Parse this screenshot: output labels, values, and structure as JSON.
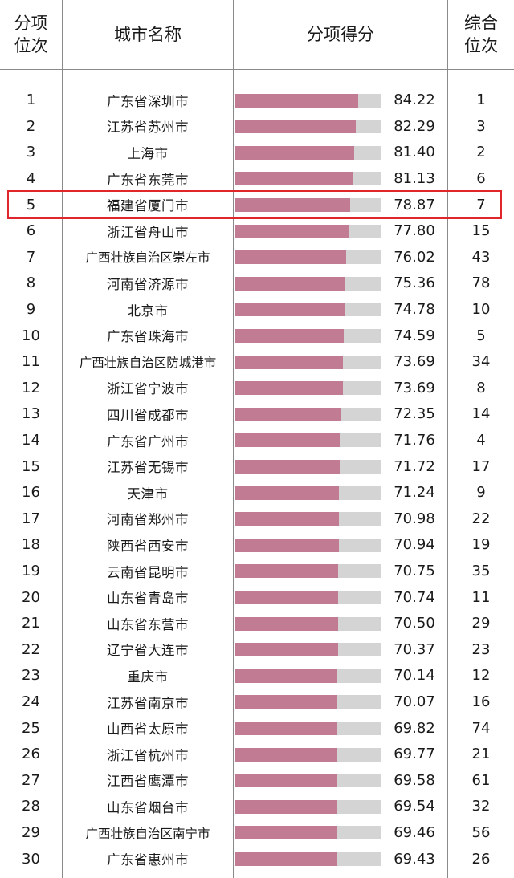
{
  "header": {
    "rank_line1": "分项",
    "rank_line2": "位次",
    "city": "城市名称",
    "score": "分项得分",
    "overall_line1": "综合",
    "overall_line2": "位次"
  },
  "colors": {
    "bar_fill": "#c17b93",
    "bar_track": "#d4d4d4",
    "highlight": "#e0262a"
  },
  "highlight_rank": 5,
  "chart_data": {
    "type": "bar",
    "orientation": "horizontal",
    "xlim": [
      0,
      100
    ],
    "rows": [
      {
        "rank": "1",
        "city": "广东省深圳市",
        "score": "84.22",
        "overall": "1"
      },
      {
        "rank": "2",
        "city": "江苏省苏州市",
        "score": "82.29",
        "overall": "3"
      },
      {
        "rank": "3",
        "city": "上海市",
        "score": "81.40",
        "overall": "2"
      },
      {
        "rank": "4",
        "city": "广东省东莞市",
        "score": "81.13",
        "overall": "6"
      },
      {
        "rank": "5",
        "city": "福建省厦门市",
        "score": "78.87",
        "overall": "7"
      },
      {
        "rank": "6",
        "city": "浙江省舟山市",
        "score": "77.80",
        "overall": "15"
      },
      {
        "rank": "7",
        "city": "广西壮族自治区崇左市",
        "score": "76.02",
        "overall": "43"
      },
      {
        "rank": "8",
        "city": "河南省济源市",
        "score": "75.36",
        "overall": "78"
      },
      {
        "rank": "9",
        "city": "北京市",
        "score": "74.78",
        "overall": "10"
      },
      {
        "rank": "10",
        "city": "广东省珠海市",
        "score": "74.59",
        "overall": "5"
      },
      {
        "rank": "11",
        "city": "广西壮族自治区防城港市",
        "score": "73.69",
        "overall": "34"
      },
      {
        "rank": "12",
        "city": "浙江省宁波市",
        "score": "73.69",
        "overall": "8"
      },
      {
        "rank": "13",
        "city": "四川省成都市",
        "score": "72.35",
        "overall": "14"
      },
      {
        "rank": "14",
        "city": "广东省广州市",
        "score": "71.76",
        "overall": "4"
      },
      {
        "rank": "15",
        "city": "江苏省无锡市",
        "score": "71.72",
        "overall": "17"
      },
      {
        "rank": "16",
        "city": "天津市",
        "score": "71.24",
        "overall": "9"
      },
      {
        "rank": "17",
        "city": "河南省郑州市",
        "score": "70.98",
        "overall": "22"
      },
      {
        "rank": "18",
        "city": "陕西省西安市",
        "score": "70.94",
        "overall": "19"
      },
      {
        "rank": "19",
        "city": "云南省昆明市",
        "score": "70.75",
        "overall": "35"
      },
      {
        "rank": "20",
        "city": "山东省青岛市",
        "score": "70.74",
        "overall": "11"
      },
      {
        "rank": "21",
        "city": "山东省东营市",
        "score": "70.50",
        "overall": "29"
      },
      {
        "rank": "22",
        "city": "辽宁省大连市",
        "score": "70.37",
        "overall": "23"
      },
      {
        "rank": "23",
        "city": "重庆市",
        "score": "70.14",
        "overall": "12"
      },
      {
        "rank": "24",
        "city": "江苏省南京市",
        "score": "70.07",
        "overall": "16"
      },
      {
        "rank": "25",
        "city": "山西省太原市",
        "score": "69.82",
        "overall": "74"
      },
      {
        "rank": "26",
        "city": "浙江省杭州市",
        "score": "69.77",
        "overall": "21"
      },
      {
        "rank": "27",
        "city": "江西省鹰潭市",
        "score": "69.58",
        "overall": "61"
      },
      {
        "rank": "28",
        "city": "山东省烟台市",
        "score": "69.54",
        "overall": "32"
      },
      {
        "rank": "29",
        "city": "广西壮族自治区南宁市",
        "score": "69.46",
        "overall": "56"
      },
      {
        "rank": "30",
        "city": "广东省惠州市",
        "score": "69.43",
        "overall": "26"
      }
    ]
  }
}
